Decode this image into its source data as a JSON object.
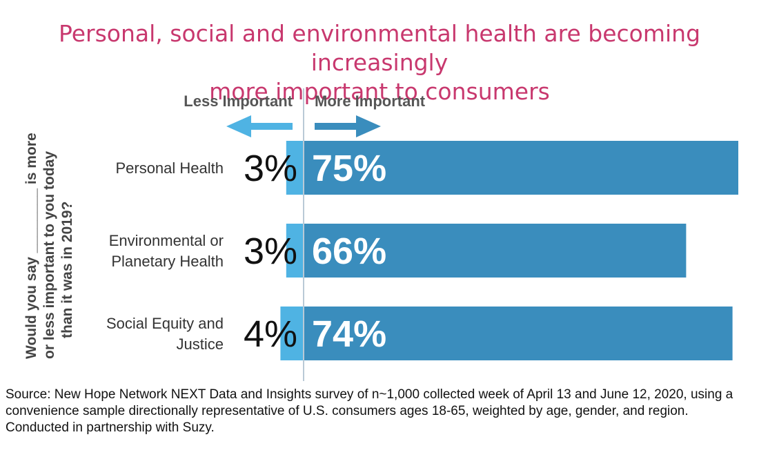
{
  "title": {
    "line1": "Personal, social and environmental health are becoming increasingly",
    "line2": "more important to consumers"
  },
  "legend": {
    "less": "Less Important",
    "more": "More Important"
  },
  "y_axis_question": {
    "line1_pre": "Would you say",
    "line1_post": "is more",
    "line2": "or less important to you today",
    "line3": "than it was in 2019?"
  },
  "colors": {
    "title": "#c8386e",
    "more_bar": "#3a8dbd",
    "less_bar": "#4fb3e3",
    "arrow_less": "#4fb3e3",
    "arrow_more": "#3a8dbd",
    "label_text": "#333333"
  },
  "chart_data": {
    "type": "bar",
    "orientation": "diverging-horizontal",
    "categories": [
      [
        "Personal Health"
      ],
      [
        "Environmental or",
        "Planetary Health"
      ],
      [
        "Social Equity and",
        "Justice"
      ]
    ],
    "series": [
      {
        "name": "Less Important",
        "values": [
          3,
          3,
          4
        ],
        "labels": [
          "3%",
          "3%",
          "4%"
        ]
      },
      {
        "name": "More Important",
        "values": [
          75,
          66,
          74
        ],
        "labels": [
          "75%",
          "66%",
          "74%"
        ]
      }
    ],
    "xlim": [
      0,
      100
    ]
  },
  "source": "Source: New Hope Network NEXT Data and Insights survey of n~1,000 collected week of April 13 and June 12, 2020, using a convenience sample directionally representative of U.S. consumers ages 18-65, weighted by age, gender, and region. Conducted in partnership with Suzy."
}
